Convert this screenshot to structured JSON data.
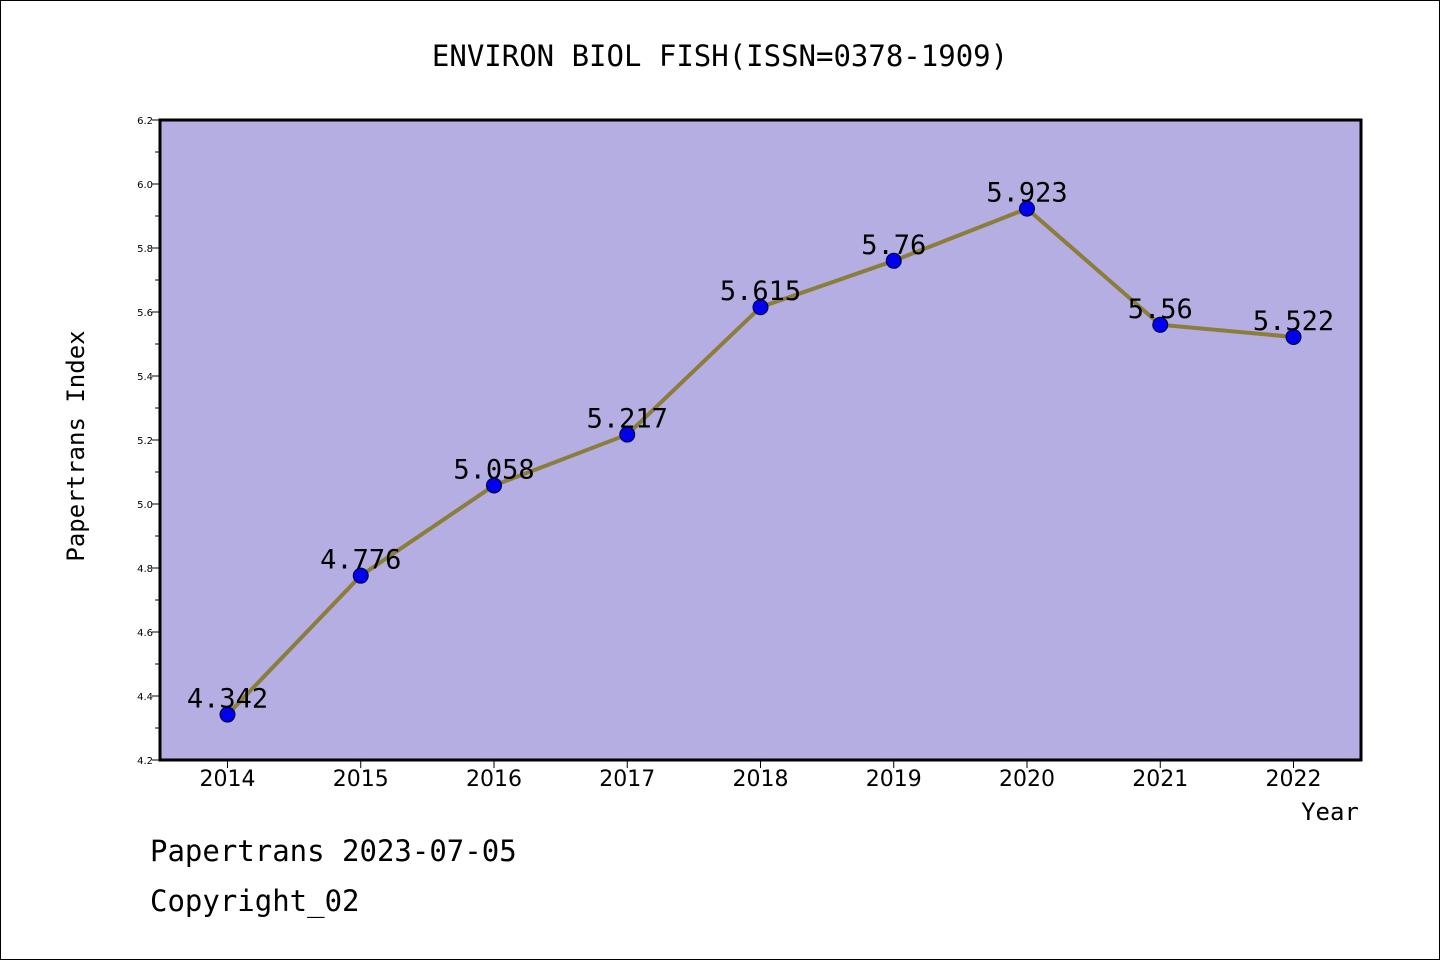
{
  "chart_data": {
    "type": "line",
    "title": "ENVIRON BIOL FISH(ISSN=0378-1909)",
    "xlabel": "Year",
    "ylabel": "Papertrans Index",
    "categories": [
      "2014",
      "2015",
      "2016",
      "2017",
      "2018",
      "2019",
      "2020",
      "2021",
      "2022"
    ],
    "series": [
      {
        "values": [
          4.342,
          4.776,
          5.058,
          5.217,
          5.615,
          5.76,
          5.923,
          5.56,
          5.522
        ],
        "labels": [
          "4.342",
          "4.776",
          "5.058",
          "5.217",
          "5.615",
          "5.76",
          "5.923",
          "5.56",
          "5.522"
        ],
        "line_color": "#8b7d3a",
        "marker_color": "#0000ee"
      }
    ],
    "ylim": [
      4.2,
      6.2
    ],
    "yticks": [
      "4.2",
      "4.4",
      "4.6",
      "4.8",
      "5.0",
      "5.2",
      "5.4",
      "5.6",
      "5.8",
      "6.0",
      "6.2"
    ],
    "plot_background": "#b5aee2",
    "grid": false,
    "legend": "none"
  },
  "footer": {
    "line1": "Papertrans 2023-07-05",
    "line2": "Copyright_02"
  }
}
